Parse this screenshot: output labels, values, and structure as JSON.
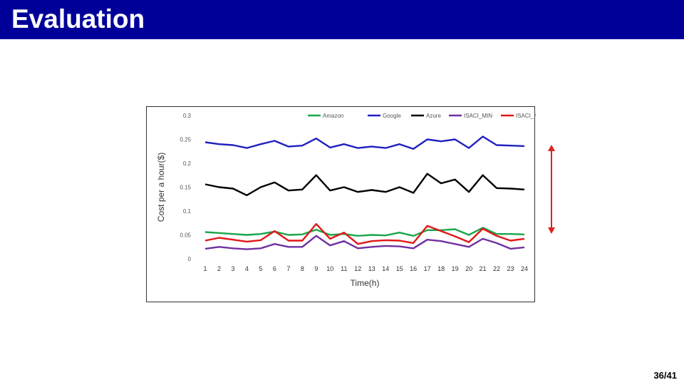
{
  "slide": {
    "title": "Evaluation",
    "page_number": "36/41",
    "title_bar_color": "#000099",
    "arrow_color": "#e02020"
  },
  "chart_data": {
    "type": "line",
    "xlabel": "Time(h)",
    "ylabel": "Cost  per a hour($)",
    "ylim": [
      0,
      0.3
    ],
    "yticks": [
      0,
      0.05,
      0.1,
      0.15,
      0.2,
      0.25,
      0.3
    ],
    "ytick_labels": [
      "0",
      "0.05",
      "0.1",
      "0.15",
      "0.2",
      "0.25",
      "0.3"
    ],
    "x": [
      1,
      2,
      3,
      4,
      5,
      6,
      7,
      8,
      9,
      10,
      11,
      12,
      13,
      14,
      15,
      16,
      17,
      18,
      19,
      20,
      21,
      22,
      23,
      24
    ],
    "legend_position": "top",
    "series": [
      {
        "name": "Amazon",
        "color": "#1aa64b",
        "values": [
          0.056,
          0.054,
          0.052,
          0.05,
          0.052,
          0.057,
          0.05,
          0.051,
          0.061,
          0.05,
          0.052,
          0.048,
          0.05,
          0.049,
          0.055,
          0.048,
          0.06,
          0.06,
          0.062,
          0.05,
          0.065,
          0.052,
          0.052,
          0.051
        ]
      },
      {
        "name": "Google",
        "color": "#2020c0",
        "values": [
          0.244,
          0.24,
          0.238,
          0.232,
          0.24,
          0.247,
          0.235,
          0.237,
          0.252,
          0.233,
          0.24,
          0.232,
          0.235,
          0.232,
          0.24,
          0.23,
          0.25,
          0.246,
          0.25,
          0.232,
          0.256,
          0.238,
          0.237,
          0.236
        ]
      },
      {
        "name": "Azure",
        "color": "#000000",
        "values": [
          0.156,
          0.15,
          0.147,
          0.133,
          0.15,
          0.16,
          0.143,
          0.145,
          0.175,
          0.143,
          0.15,
          0.14,
          0.144,
          0.14,
          0.15,
          0.138,
          0.178,
          0.158,
          0.166,
          0.14,
          0.175,
          0.148,
          0.147,
          0.145
        ]
      },
      {
        "name": "ISACI_MIN",
        "color": "#7030a0",
        "values": [
          0.021,
          0.025,
          0.022,
          0.02,
          0.022,
          0.031,
          0.025,
          0.025,
          0.048,
          0.028,
          0.037,
          0.022,
          0.025,
          0.027,
          0.026,
          0.022,
          0.04,
          0.037,
          0.031,
          0.025,
          0.042,
          0.033,
          0.021,
          0.024
        ]
      },
      {
        "name": "ISACI_MAX",
        "color": "#e01818",
        "values": [
          0.038,
          0.044,
          0.04,
          0.036,
          0.039,
          0.058,
          0.038,
          0.038,
          0.073,
          0.042,
          0.055,
          0.031,
          0.037,
          0.039,
          0.038,
          0.033,
          0.069,
          0.058,
          0.047,
          0.035,
          0.063,
          0.048,
          0.038,
          0.042
        ]
      }
    ]
  }
}
